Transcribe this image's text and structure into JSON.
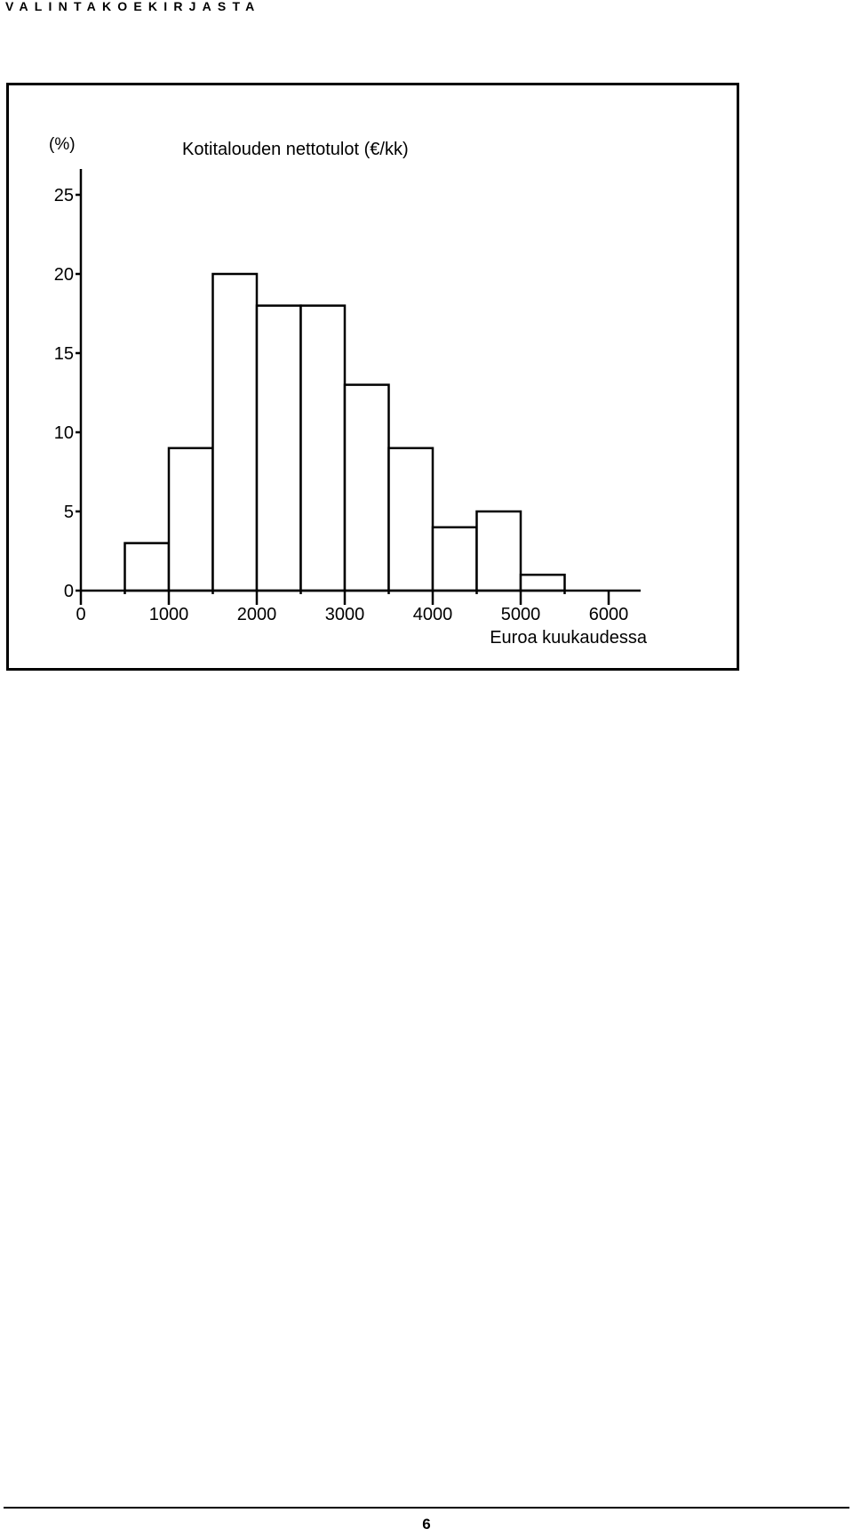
{
  "header": {
    "title": "VALINTAKOEKIRJASTA"
  },
  "chart_data": {
    "type": "bar",
    "title": "Kotitalouden nettotulot (€/kk)",
    "ylabel": "(%)",
    "xlabel": "Euroa kuukaudessa",
    "bin_width": 500,
    "bins_start": [
      500,
      1000,
      1500,
      2000,
      2500,
      3000,
      3500,
      4000,
      4500,
      5000
    ],
    "values": [
      3,
      9,
      20,
      18,
      18,
      13,
      9,
      4,
      5,
      1
    ],
    "xlim": [
      0,
      6300
    ],
    "ylim": [
      0,
      26
    ],
    "x_ticks": [
      "0",
      "1000",
      "2000",
      "3000",
      "4000",
      "5000",
      "6000"
    ],
    "y_ticks": [
      "0",
      "5",
      "10",
      "15",
      "20",
      "25"
    ],
    "grid": false,
    "legend": "none"
  },
  "footer": {
    "page_number": "6"
  }
}
